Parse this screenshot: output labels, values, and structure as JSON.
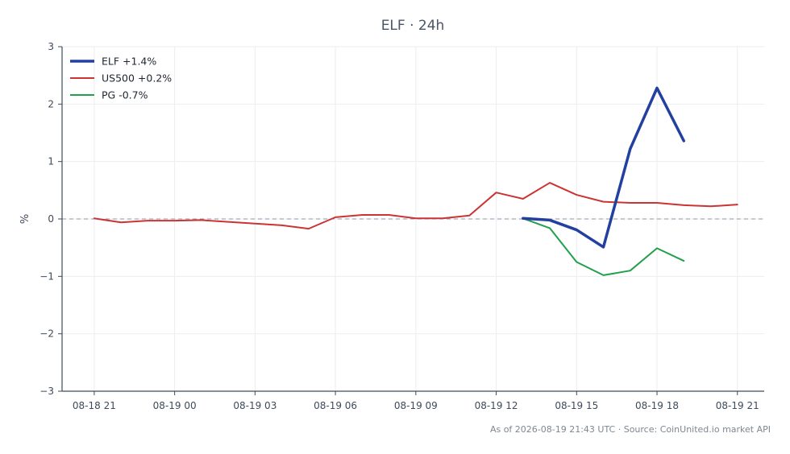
{
  "chart_data": {
    "type": "line",
    "title": "ELF · 24h",
    "xlabel": "",
    "ylabel": "%",
    "ylim": [
      -3,
      3
    ],
    "yticks": [
      -3,
      -2,
      -1,
      0,
      1,
      2,
      3
    ],
    "ytick_labels": [
      "−3",
      "−2",
      "−1",
      "0",
      "1",
      "2",
      "3"
    ],
    "xlim": [
      -1.2,
      25
    ],
    "xticks": [
      0,
      3,
      6,
      9,
      12,
      15,
      18,
      21,
      24
    ],
    "xtick_labels": [
      "08-18 21",
      "08-19 00",
      "08-19 03",
      "08-19 06",
      "08-19 09",
      "08-19 12",
      "08-19 15",
      "08-19 18",
      "08-19 21"
    ],
    "grid": true,
    "zero_line": true,
    "legend_position": "top-left",
    "series": [
      {
        "name": "ELF +1.4%",
        "color": "#2340a0",
        "width": 3.5,
        "x": [
          16,
          17,
          18,
          19,
          20,
          21,
          22
        ],
        "y": [
          0.01,
          -0.02,
          -0.19,
          -0.49,
          1.22,
          2.28,
          1.36
        ]
      },
      {
        "name": "US500 +0.2%",
        "color": "#cc3333",
        "width": 2,
        "x": [
          0,
          1,
          2,
          3,
          4,
          5,
          6,
          7,
          8,
          9,
          10,
          11,
          12,
          13,
          14,
          15,
          16,
          17,
          18,
          19,
          20,
          21,
          22,
          23,
          24
        ],
        "y": [
          0.01,
          -0.06,
          -0.03,
          -0.03,
          -0.02,
          -0.05,
          -0.08,
          -0.11,
          -0.17,
          0.03,
          0.07,
          0.07,
          0.01,
          0.01,
          0.06,
          0.46,
          0.35,
          0.63,
          0.42,
          0.3,
          0.28,
          0.28,
          0.24,
          0.22,
          0.25
        ]
      },
      {
        "name": "PG -0.7%",
        "color": "#22a04b",
        "width": 2,
        "x": [
          16,
          17,
          18,
          19,
          20,
          21,
          22
        ],
        "y": [
          0.01,
          -0.16,
          -0.75,
          -0.98,
          -0.9,
          -0.51,
          -0.73
        ]
      }
    ]
  },
  "footer": "As of 2026-08-19 21:43 UTC · Source: CoinUnited.io market API"
}
